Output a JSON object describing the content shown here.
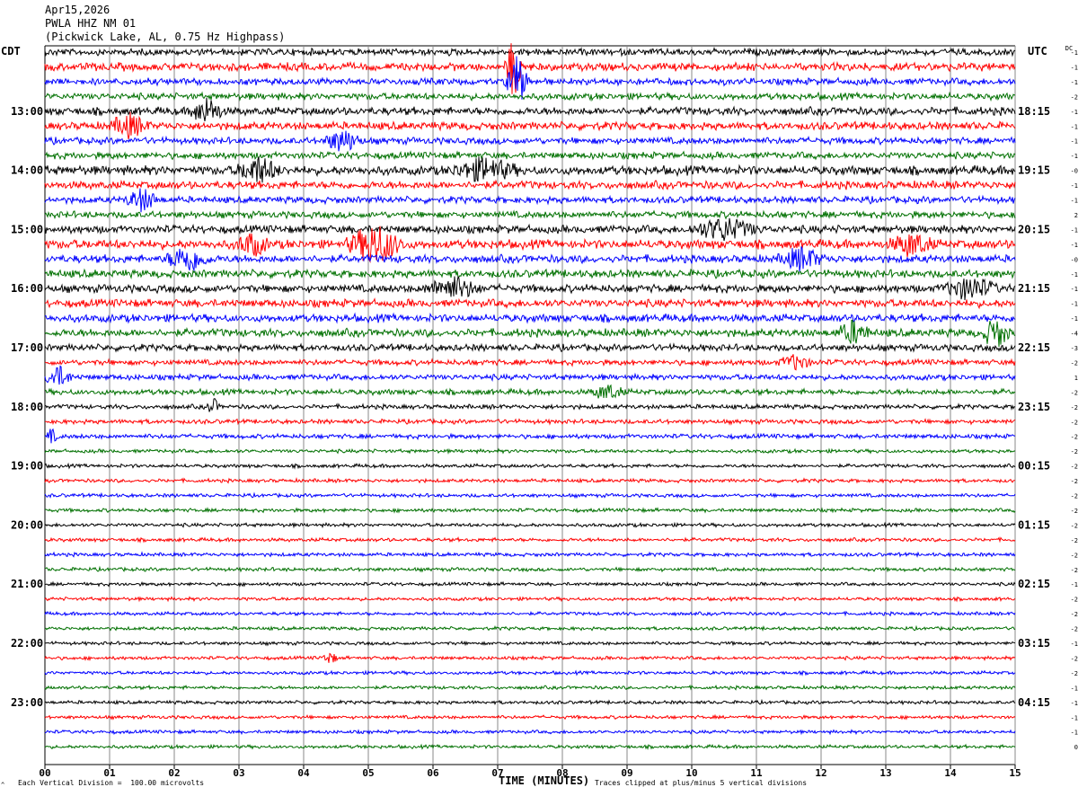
{
  "header": {
    "date": "Apr15,2026",
    "station": "PWLA HHZ NM 01",
    "location": "(Pickwick Lake, AL, 0.75 Hz Highpass)"
  },
  "tz_left": "CDT",
  "tz_right": "UTC",
  "dc_label": "DC",
  "footer": {
    "scale": "Each Vertical Division =  100.00 microvolts",
    "clip": "Traces clipped at plus/minus 5 vertical divisions"
  },
  "corner_mark": "^",
  "colors": {
    "black": "#000000",
    "red": "#ff0000",
    "blue": "#0000ff",
    "green": "#007000",
    "grid": "#888888"
  },
  "chart_data": {
    "type": "line",
    "title": "",
    "xlabel": "TIME (MINUTES)",
    "xlim": [
      0,
      15
    ],
    "x_ticks": [
      "00",
      "01",
      "02",
      "03",
      "04",
      "05",
      "06",
      "07",
      "08",
      "09",
      "10",
      "11",
      "12",
      "13",
      "14",
      "15"
    ],
    "trace_colors": [
      "black",
      "red",
      "blue",
      "green"
    ],
    "left_hour_labels": [
      {
        "trace": 4,
        "label": "13:00"
      },
      {
        "trace": 8,
        "label": "14:00"
      },
      {
        "trace": 12,
        "label": "15:00"
      },
      {
        "trace": 16,
        "label": "16:00"
      },
      {
        "trace": 20,
        "label": "17:00"
      },
      {
        "trace": 24,
        "label": "18:00"
      },
      {
        "trace": 28,
        "label": "19:00"
      },
      {
        "trace": 32,
        "label": "20:00"
      },
      {
        "trace": 36,
        "label": "21:00"
      },
      {
        "trace": 40,
        "label": "22:00"
      },
      {
        "trace": 44,
        "label": "23:00"
      }
    ],
    "right_hour_labels": [
      {
        "trace": 4,
        "label": "18:15"
      },
      {
        "trace": 8,
        "label": "19:15"
      },
      {
        "trace": 12,
        "label": "20:15"
      },
      {
        "trace": 16,
        "label": "21:15"
      },
      {
        "trace": 20,
        "label": "22:15"
      },
      {
        "trace": 24,
        "label": "23:15"
      },
      {
        "trace": 28,
        "label": "00:15"
      },
      {
        "trace": 32,
        "label": "01:15"
      },
      {
        "trace": 36,
        "label": "02:15"
      },
      {
        "trace": 40,
        "label": "03:15"
      },
      {
        "trace": 44,
        "label": "04:15"
      }
    ],
    "dc_offsets": [
      "-1",
      "-1",
      "-1",
      "-2",
      "-1",
      "-1",
      "-1",
      "-1",
      "-0",
      "-1",
      "-1",
      "2",
      "-1",
      "-1",
      "-0",
      "-1",
      "-1",
      "-1",
      "-1",
      "-4",
      "-3",
      "-2",
      "1",
      "-2",
      "-2",
      "-2",
      "-2",
      "-2",
      "-2",
      "-2",
      "-2",
      "-2",
      "-2",
      "-2",
      "-2",
      "-2",
      "-1",
      "-2",
      "-2",
      "-2",
      "-1",
      "-2",
      "-2",
      "-1",
      "-1",
      "-1",
      "-1",
      "0"
    ],
    "trace_amplitude": [
      3,
      3.5,
      3,
      3,
      3.5,
      3.5,
      3,
      3,
      4,
      3.5,
      3,
      3,
      3.5,
      4,
      3.5,
      3.5,
      3.5,
      3.5,
      3.5,
      3.5,
      3,
      2.5,
      2.5,
      2.5,
      2,
      2,
      2,
      1.6,
      1.6,
      1.6,
      1.6,
      1.6,
      1.6,
      1.6,
      1.6,
      1.6,
      1.5,
      1.5,
      1.5,
      1.5,
      1.5,
      1.5,
      1.5,
      1.5,
      1.5,
      1.5,
      1.5,
      1.5
    ],
    "events": [
      {
        "trace": 1,
        "minute": 7.25,
        "amp": 35,
        "width": 0.15
      },
      {
        "trace": 2,
        "minute": 7.3,
        "amp": 28,
        "width": 0.2
      },
      {
        "trace": 4,
        "minute": 2.5,
        "amp": 14,
        "width": 0.3
      },
      {
        "trace": 5,
        "minute": 1.3,
        "amp": 12,
        "width": 0.35
      },
      {
        "trace": 6,
        "minute": 4.6,
        "amp": 12,
        "width": 0.35
      },
      {
        "trace": 8,
        "minute": 3.3,
        "amp": 14,
        "width": 0.4
      },
      {
        "trace": 8,
        "minute": 6.8,
        "amp": 12,
        "width": 0.6
      },
      {
        "trace": 10,
        "minute": 1.5,
        "amp": 12,
        "width": 0.3
      },
      {
        "trace": 12,
        "minute": 10.5,
        "amp": 12,
        "width": 0.6
      },
      {
        "trace": 13,
        "minute": 5.1,
        "amp": 22,
        "width": 0.5
      },
      {
        "trace": 13,
        "minute": 3.2,
        "amp": 12,
        "width": 0.3
      },
      {
        "trace": 13,
        "minute": 13.4,
        "amp": 12,
        "width": 0.4
      },
      {
        "trace": 14,
        "minute": 2.2,
        "amp": 14,
        "width": 0.4
      },
      {
        "trace": 14,
        "minute": 11.7,
        "amp": 12,
        "width": 0.4
      },
      {
        "trace": 16,
        "minute": 6.3,
        "amp": 12,
        "width": 0.5
      },
      {
        "trace": 16,
        "minute": 14.3,
        "amp": 12,
        "width": 0.5
      },
      {
        "trace": 19,
        "minute": 12.5,
        "amp": 12,
        "width": 0.3
      },
      {
        "trace": 19,
        "minute": 14.7,
        "amp": 16,
        "width": 0.25
      },
      {
        "trace": 21,
        "minute": 11.6,
        "amp": 8,
        "width": 0.3
      },
      {
        "trace": 22,
        "minute": 0.2,
        "amp": 12,
        "width": 0.25
      },
      {
        "trace": 23,
        "minute": 8.7,
        "amp": 8,
        "width": 0.3
      },
      {
        "trace": 24,
        "minute": 2.6,
        "amp": 9,
        "width": 0.12
      },
      {
        "trace": 26,
        "minute": 0.1,
        "amp": 7,
        "width": 0.12
      },
      {
        "trace": 41,
        "minute": 4.4,
        "amp": 6,
        "width": 0.15
      }
    ]
  }
}
